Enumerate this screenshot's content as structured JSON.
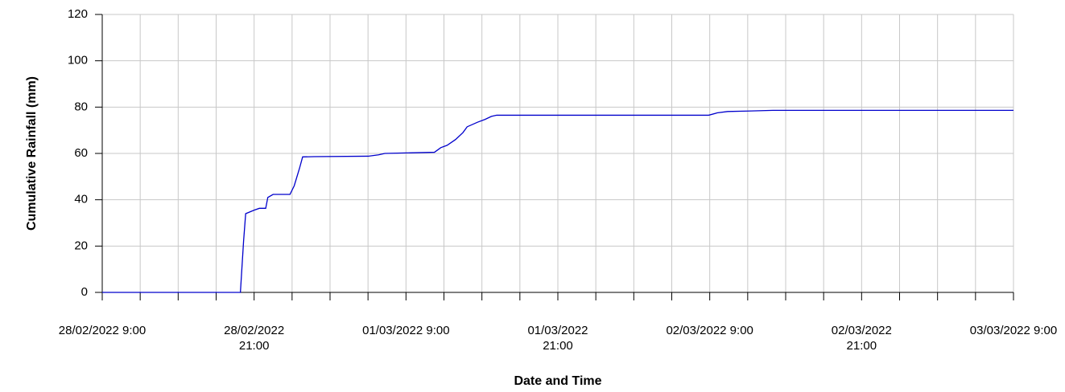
{
  "chart_data": {
    "type": "line",
    "x_label": "Date and Time",
    "y_label": "Cumulative Rainfall (mm)",
    "x": [
      "28/02/2022 9:00",
      "28/02/2022 19:55",
      "28/02/2022 20:10",
      "28/02/2022 20:20",
      "28/02/2022 21:00",
      "28/02/2022 21:25",
      "28/02/2022 21:55",
      "28/02/2022 22:05",
      "28/02/2022 22:30",
      "28/02/2022 23:50",
      "01/03/2022 0:10",
      "01/03/2022 0:35",
      "01/03/2022 0:50",
      "01/03/2022 1:45",
      "01/03/2022 6:00",
      "01/03/2022 6:50",
      "01/03/2022 7:20",
      "01/03/2022 11:15",
      "01/03/2022 11:45",
      "01/03/2022 12:15",
      "01/03/2022 12:55",
      "01/03/2022 13:30",
      "01/03/2022 13:50",
      "01/03/2022 14:40",
      "01/03/2022 15:15",
      "01/03/2022 15:45",
      "01/03/2022 16:10",
      "02/03/2022 8:55",
      "02/03/2022 9:35",
      "02/03/2022 10:25",
      "02/03/2022 12:00",
      "02/03/2022 14:00",
      "03/03/2022 9:00"
    ],
    "series": [
      {
        "name": "Cumulative Rainfall",
        "color": "#0000cc",
        "values": [
          0,
          0,
          22,
          34,
          35.5,
          36.3,
          36.3,
          41,
          42.3,
          42.3,
          46,
          53.5,
          58.5,
          58.6,
          58.8,
          59.4,
          60,
          60.5,
          62.5,
          63.5,
          66,
          69,
          71.5,
          73.5,
          74.7,
          76,
          76.5,
          76.5,
          77.5,
          78.1,
          78.3,
          78.6,
          78.6
        ]
      }
    ],
    "xlim": [
      "28/02/2022 9:00",
      "03/03/2022 9:00"
    ],
    "xticks": [
      "28/02/2022 9:00",
      "28/02/2022 21:00",
      "01/03/2022 9:00",
      "01/03/2022 21:00",
      "02/03/2022 9:00",
      "02/03/2022 21:00",
      "03/03/2022 9:00"
    ],
    "xminorticks": [
      "28/02/2022 12:00",
      "28/02/2022 15:00",
      "28/02/2022 18:00",
      "01/03/2022 0:00",
      "01/03/2022 3:00",
      "01/03/2022 6:00",
      "01/03/2022 12:00",
      "01/03/2022 15:00",
      "01/03/2022 18:00",
      "02/03/2022 0:00",
      "02/03/2022 3:00",
      "02/03/2022 6:00",
      "02/03/2022 12:00",
      "02/03/2022 15:00",
      "02/03/2022 18:00",
      "03/03/2022 0:00",
      "03/03/2022 3:00",
      "03/03/2022 6:00"
    ],
    "ylim": [
      0,
      120
    ],
    "yticks": [
      0,
      20,
      40,
      60,
      80,
      100,
      120
    ],
    "grid": true
  }
}
